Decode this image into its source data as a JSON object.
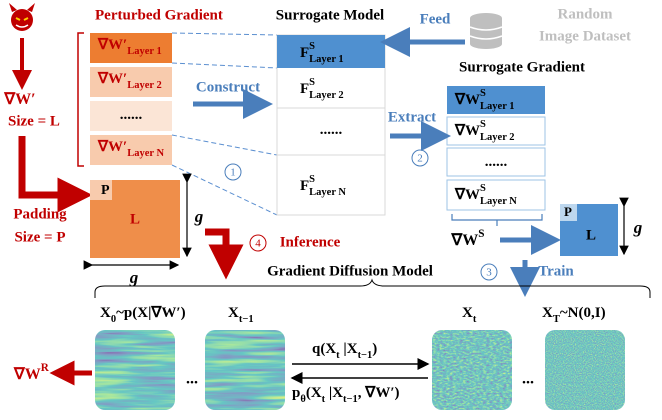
{
  "perturbed_gradient": {
    "title": "Perturbed Gradient",
    "symbol": [
      {
        "text": "∇W′"
      }
    ],
    "size": "Size = L",
    "layers": [
      [
        {
          "text": "∇W′"
        },
        {
          "sub": "Layer 1"
        }
      ],
      [
        {
          "text": "∇W′"
        },
        {
          "sub": "Layer 2"
        }
      ],
      [
        {
          "text": "......"
        }
      ],
      [
        {
          "text": "∇W′"
        },
        {
          "sub": "Layer N"
        }
      ]
    ]
  },
  "surrogate_model": {
    "title": "Surrogate Model",
    "layers": [
      [
        {
          "text": "F"
        },
        {
          "sup": "S"
        },
        {
          "sub": "Layer 1"
        }
      ],
      [
        {
          "text": "F"
        },
        {
          "sup": "S"
        },
        {
          "sub": "Layer 2"
        }
      ],
      [
        {
          "text": "......"
        }
      ],
      [
        {
          "text": "F"
        },
        {
          "sup": "S"
        },
        {
          "sub": "Layer N"
        }
      ]
    ]
  },
  "dataset": {
    "feed": "Feed",
    "line1": "Random",
    "line2": "Image Dataset"
  },
  "surrogate_gradient": {
    "title": "Surrogate Gradient",
    "symbol": [
      {
        "text": "∇W"
      },
      {
        "sup": "S"
      }
    ],
    "layers": [
      [
        {
          "text": "∇W"
        },
        {
          "sup": "S"
        },
        {
          "sub": "Layer 1"
        }
      ],
      [
        {
          "text": "∇W"
        },
        {
          "sup": "S"
        },
        {
          "sub": "Layer 2"
        }
      ],
      [
        {
          "text": "......"
        }
      ],
      [
        {
          "text": "∇W"
        },
        {
          "sup": "S"
        },
        {
          "sub": "Layer N"
        }
      ]
    ]
  },
  "steps": [
    {
      "number": "1",
      "label": "Construct"
    },
    {
      "number": "2",
      "label": "Extract"
    },
    {
      "number": "3",
      "label": "Train"
    },
    {
      "number": "4",
      "label": "Inference"
    }
  ],
  "padding": {
    "label": "Padding",
    "size": "Size = P",
    "p": "P",
    "l": "L",
    "g_side": "g",
    "g_bottom": "g"
  },
  "train_block": {
    "p": "P",
    "l": "L",
    "g": "g"
  },
  "diffusion": {
    "title": "Gradient Diffusion Model",
    "x0": [
      {
        "text": "X"
      },
      {
        "sub": "0"
      },
      {
        "text": "~p(X|∇W′)"
      }
    ],
    "xt_prev": [
      {
        "text": "X"
      },
      {
        "sub": "t−1"
      }
    ],
    "xt": [
      {
        "text": "X"
      },
      {
        "sub": "t"
      }
    ],
    "xT": [
      {
        "text": "X"
      },
      {
        "sub": "T"
      },
      {
        "text": "~N(0,I)"
      }
    ],
    "forward": [
      {
        "text": "q(X"
      },
      {
        "sub": "t"
      },
      {
        "text": " |X"
      },
      {
        "sub": "t−1"
      },
      {
        "text": ")"
      }
    ],
    "reverse": [
      {
        "text": "p"
      },
      {
        "sub": "θ"
      },
      {
        "text": "(X"
      },
      {
        "sub": "t"
      },
      {
        "text": " |X"
      },
      {
        "sub": "t−1"
      },
      {
        "text": ", ∇W′)"
      }
    ],
    "dots_left": "...",
    "dots_right": "...",
    "output": [
      {
        "text": "∇W"
      },
      {
        "sup": "R"
      }
    ]
  }
}
